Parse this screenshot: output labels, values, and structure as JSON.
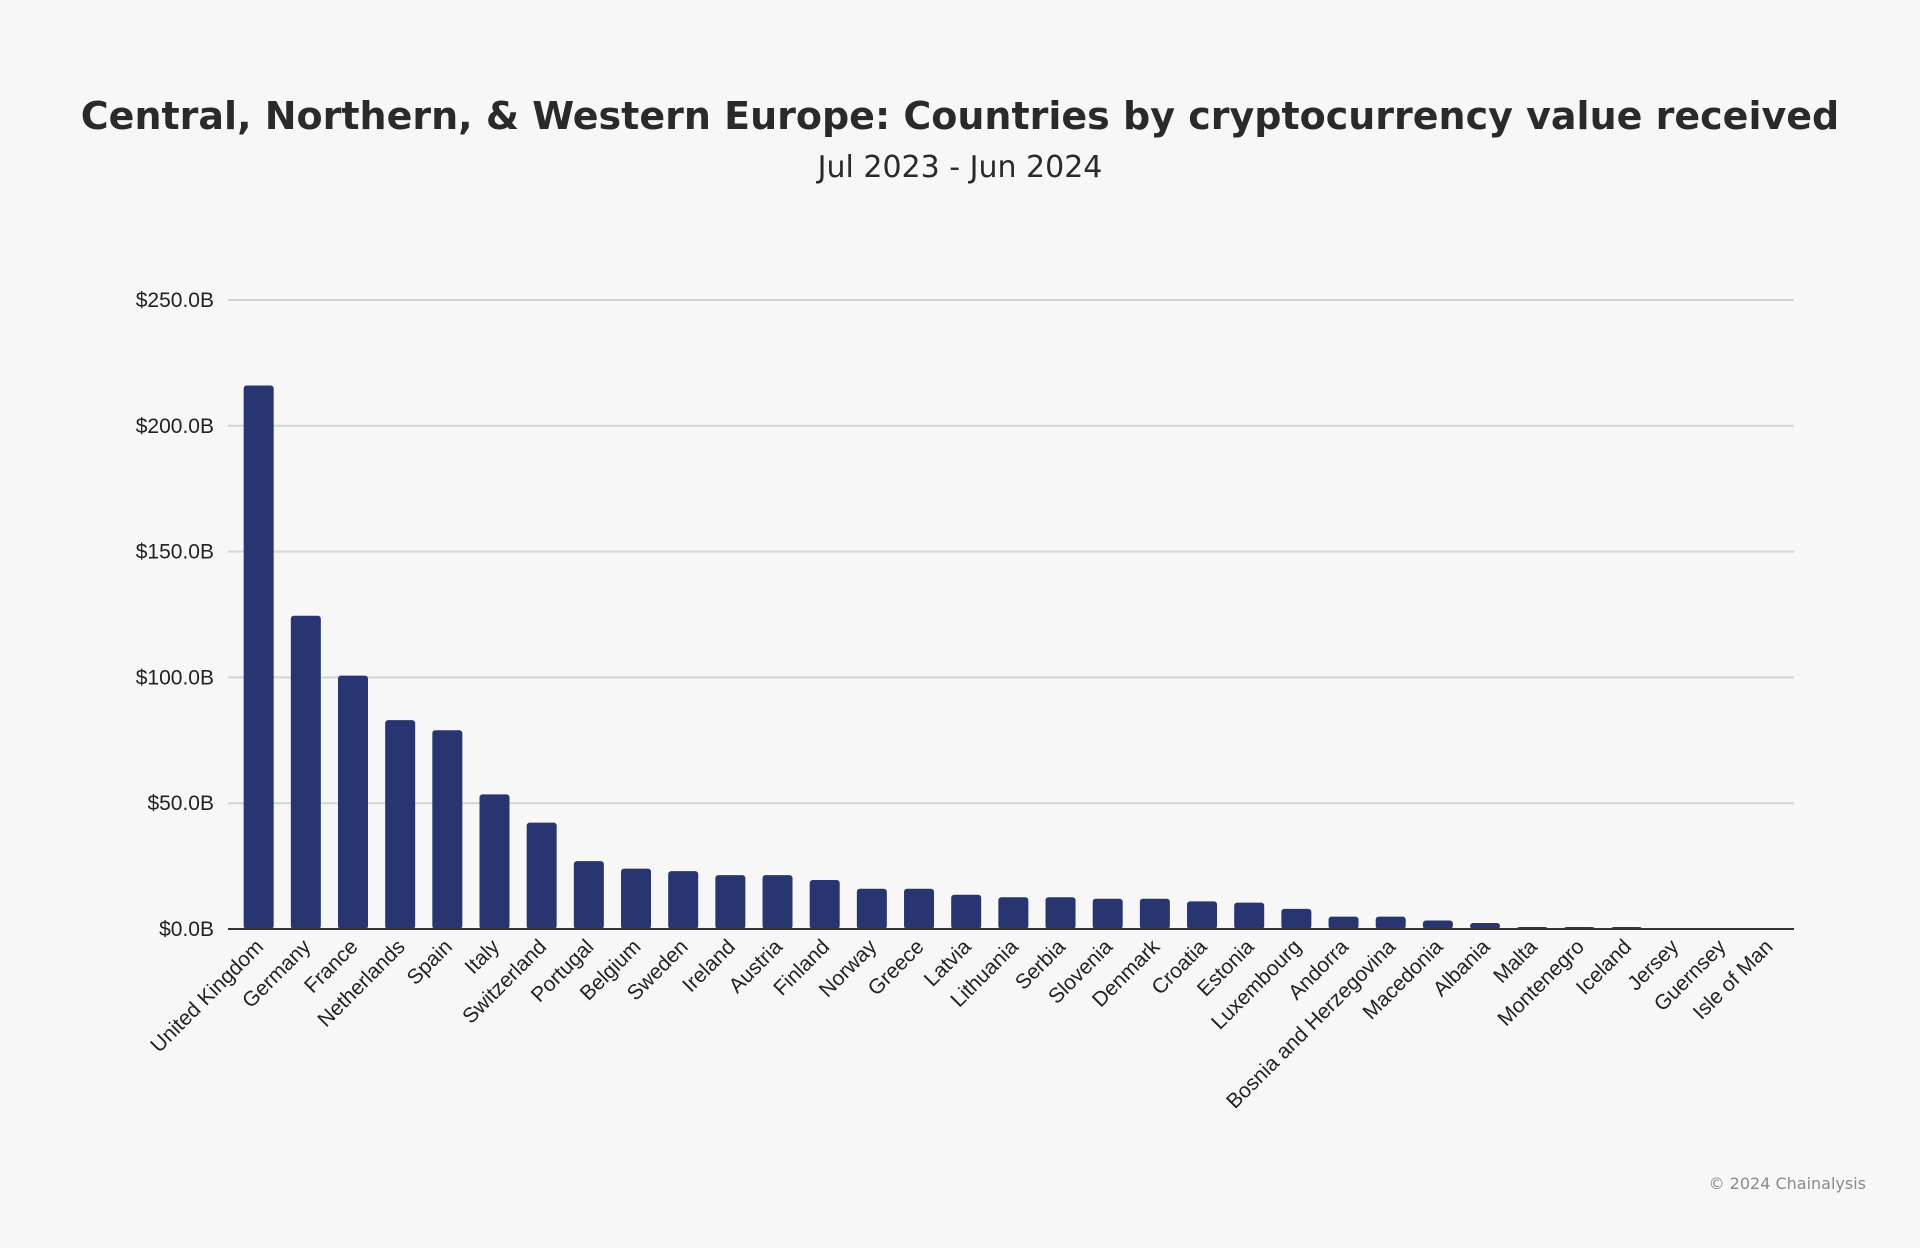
{
  "chart_data": {
    "type": "bar",
    "title": "Central, Northern, & Western Europe: Countries by cryptocurrency value received",
    "subtitle": "Jul 2023 - Jun 2024",
    "xlabel": "",
    "ylabel": "",
    "ylim": [
      0,
      250
    ],
    "yticks": [
      0,
      50,
      100,
      150,
      200,
      250
    ],
    "ytick_labels": [
      "$0.0B",
      "$50.0B",
      "$100.0B",
      "$150.0B",
      "$200.0B",
      "$250.0B"
    ],
    "grid": true,
    "bar_color": "#283570",
    "categories": [
      "United Kingdom",
      "Germany",
      "France",
      "Netherlands",
      "Spain",
      "Italy",
      "Switzerland",
      "Portugal",
      "Belgium",
      "Sweden",
      "Ireland",
      "Austria",
      "Finland",
      "Norway",
      "Greece",
      "Latvia",
      "Lithuania",
      "Serbia",
      "Slovenia",
      "Denmark",
      "Croatia",
      "Estonia",
      "Luxembourg",
      "Andorra",
      "Bosnia and Herzegovina",
      "Macedonia",
      "Albania",
      "Malta",
      "Montenegro",
      "Iceland",
      "Jersey",
      "Guernsey",
      "Isle of Man"
    ],
    "values": [
      216,
      124.5,
      100.7,
      83,
      79,
      53.5,
      42.3,
      27,
      24,
      23,
      21.4,
      21.4,
      19.5,
      16,
      16,
      13.6,
      12.6,
      12.6,
      12,
      12,
      11,
      10.5,
      8,
      4.9,
      4.9,
      3.4,
      2.4,
      0.8,
      0.8,
      0.8,
      0,
      0,
      0
    ]
  },
  "credit": "© 2024 Chainalysis"
}
